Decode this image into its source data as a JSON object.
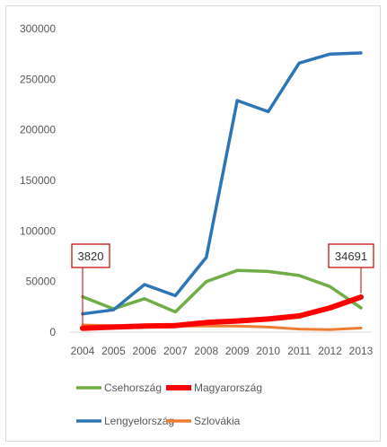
{
  "chart_data": {
    "type": "line",
    "title": "",
    "xlabel": "",
    "ylabel": "",
    "categories": [
      "2004",
      "2005",
      "2006",
      "2007",
      "2008",
      "2009",
      "2010",
      "2011",
      "2012",
      "2013"
    ],
    "y_ticks": [
      "0",
      "50000",
      "100000",
      "150000",
      "200000",
      "250000",
      "300000"
    ],
    "ylim": [
      0,
      300000
    ],
    "grid": false,
    "legend_position": "bottom",
    "series": [
      {
        "name": "Csehország",
        "color": "#70ad47",
        "values": [
          35000,
          23000,
          33000,
          20000,
          50000,
          61000,
          60000,
          56000,
          45000,
          24000
        ]
      },
      {
        "name": "Magyarország",
        "color": "#ff0000",
        "values": [
          3820,
          5000,
          6000,
          6500,
          9500,
          11000,
          13000,
          16000,
          24000,
          34691
        ]
      },
      {
        "name": "Lengyelország",
        "color": "#2e75b6",
        "values": [
          18000,
          22000,
          47000,
          36000,
          74000,
          229000,
          218000,
          266000,
          275000,
          276000
        ]
      },
      {
        "name": "Szlovákia",
        "color": "#ed7d31",
        "values": [
          7000,
          6500,
          6000,
          6000,
          6000,
          6000,
          5000,
          3000,
          2500,
          4000
        ]
      }
    ],
    "annotations": [
      {
        "text": "3820",
        "category": "2004",
        "series": "Magyarország"
      },
      {
        "text": "34691",
        "category": "2013",
        "series": "Magyarország"
      }
    ]
  }
}
